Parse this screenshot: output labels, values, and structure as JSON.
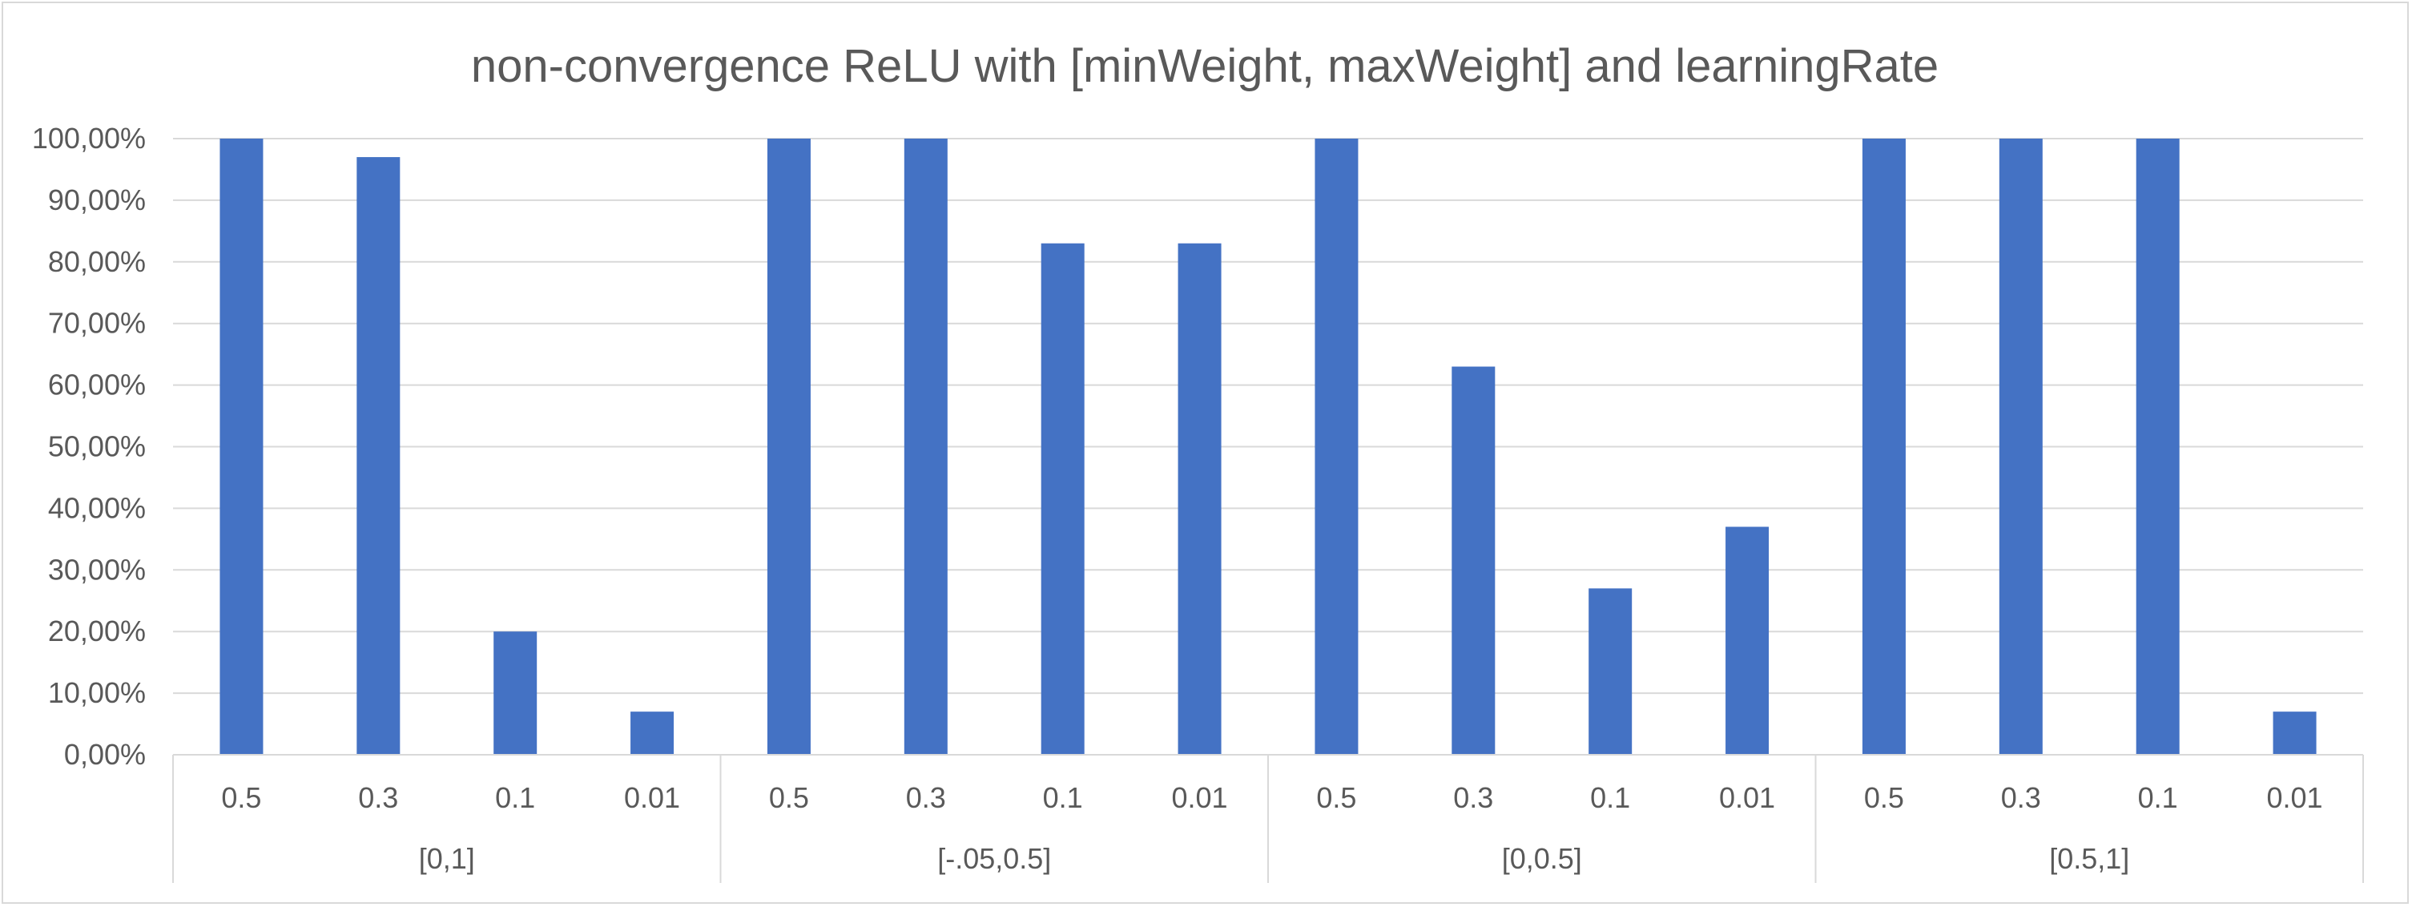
{
  "chart_data": {
    "type": "bar",
    "title": "non-convergence ReLU with [minWeight, maxWeight] and learningRate",
    "xlabel": "",
    "ylabel": "",
    "ylim": [
      0,
      1
    ],
    "y_ticks": [
      0,
      0.1,
      0.2,
      0.3,
      0.4,
      0.5,
      0.6,
      0.7,
      0.8,
      0.9,
      1.0
    ],
    "y_tick_labels": [
      "0,00%",
      "10,00%",
      "20,00%",
      "30,00%",
      "40,00%",
      "50,00%",
      "60,00%",
      "70,00%",
      "80,00%",
      "90,00%",
      "100,00%"
    ],
    "grid": true,
    "legend": "none",
    "bar_color": "#4472C4",
    "groups": [
      {
        "label": "[0,1]",
        "categories": [
          "0.5",
          "0.3",
          "0.1",
          "0.01"
        ],
        "values": [
          1.0,
          0.97,
          0.2,
          0.07
        ]
      },
      {
        "label": "[-.05,0.5]",
        "categories": [
          "0.5",
          "0.3",
          "0.1",
          "0.01"
        ],
        "values": [
          1.0,
          1.0,
          0.83,
          0.83
        ]
      },
      {
        "label": "[0,0.5]",
        "categories": [
          "0.5",
          "0.3",
          "0.1",
          "0.01"
        ],
        "values": [
          1.0,
          0.63,
          0.27,
          0.37
        ]
      },
      {
        "label": "[0.5,1]",
        "categories": [
          "0.5",
          "0.3",
          "0.1",
          "0.01"
        ],
        "values": [
          1.0,
          1.0,
          1.0,
          0.07
        ]
      }
    ]
  }
}
